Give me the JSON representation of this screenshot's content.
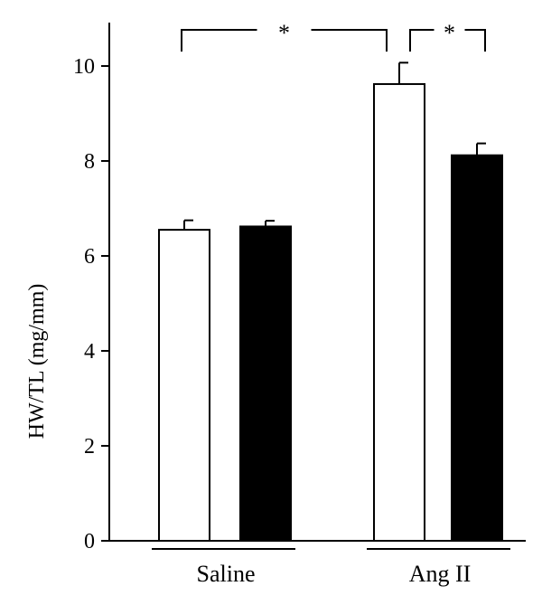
{
  "chart_data": {
    "type": "bar",
    "title": "",
    "xlabel": "",
    "ylabel": "HW/TL (mg/mm)",
    "ylim": [
      0,
      11
    ],
    "yticks": [
      0,
      2,
      4,
      6,
      8,
      10
    ],
    "grid": false,
    "legend": "none",
    "groups": [
      "Saline",
      "Ang II"
    ],
    "bars": [
      {
        "group": "Saline",
        "fill": "#ffffff",
        "value": 6.55,
        "error": 0.2
      },
      {
        "group": "Saline",
        "fill": "#000000",
        "value": 6.62,
        "error": 0.12
      },
      {
        "group": "Ang II",
        "fill": "#ffffff",
        "value": 9.62,
        "error": 0.45
      },
      {
        "group": "Ang II",
        "fill": "#000000",
        "value": 8.12,
        "error": 0.25
      }
    ],
    "significance": [
      {
        "from_bar": 0,
        "to_bar": 2,
        "label": "*"
      },
      {
        "from_bar": 2,
        "to_bar": 3,
        "label": "*"
      }
    ]
  }
}
